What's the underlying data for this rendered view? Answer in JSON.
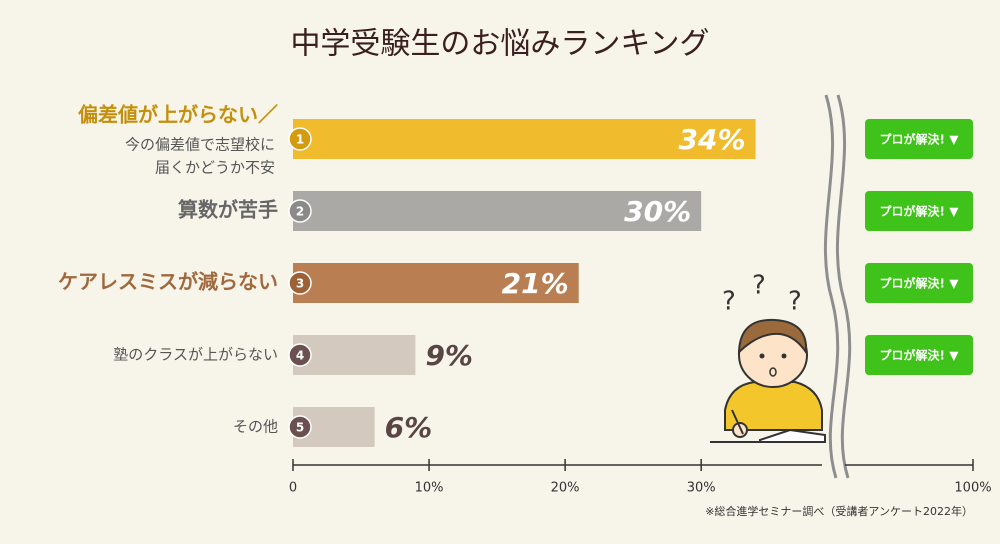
{
  "chart_data": {
    "type": "bar",
    "orientation": "horizontal",
    "title": "中学受験生のお悩みランキング",
    "categories": [
      "偏差値が上がらない／",
      "算数が苦手",
      "ケアレスミスが減らない",
      "塾のクラスが上がらない",
      "その他"
    ],
    "category_detail": [
      "今の偏差値で志望校に",
      "届くかどうか不安"
    ],
    "ranks": [
      1,
      2,
      3,
      4,
      5
    ],
    "values": [
      34,
      30,
      21,
      9,
      6
    ],
    "value_labels": [
      "34%",
      "30%",
      "21%",
      "9%",
      "6%"
    ],
    "colors": [
      "#f0bb2c",
      "#aaa9a6",
      "#b97f52",
      "#d3c9be",
      "#d3c9be"
    ],
    "rank_colors": [
      "#d49a10",
      "#8a8a88",
      "#9c6236",
      "#6b5050",
      "#6b5050"
    ],
    "label_colors": [
      "#c48f0c",
      "#666666",
      "#a0683c",
      "#555555",
      "#555555"
    ],
    "xlim": [
      0,
      100
    ],
    "axis_break": [
      38,
      95
    ],
    "xticks": [
      0,
      {
        "value": 10,
        "label": "10%"
      },
      {
        "value": 20,
        "label": "20%"
      },
      {
        "value": 30,
        "label": "30%"
      },
      {
        "value": 100,
        "label": "100%"
      }
    ],
    "button_label": "プロが解決! ▼",
    "button_count": 4,
    "source": "※総合進学セミナー調べ（受講者アンケート2022年）"
  }
}
